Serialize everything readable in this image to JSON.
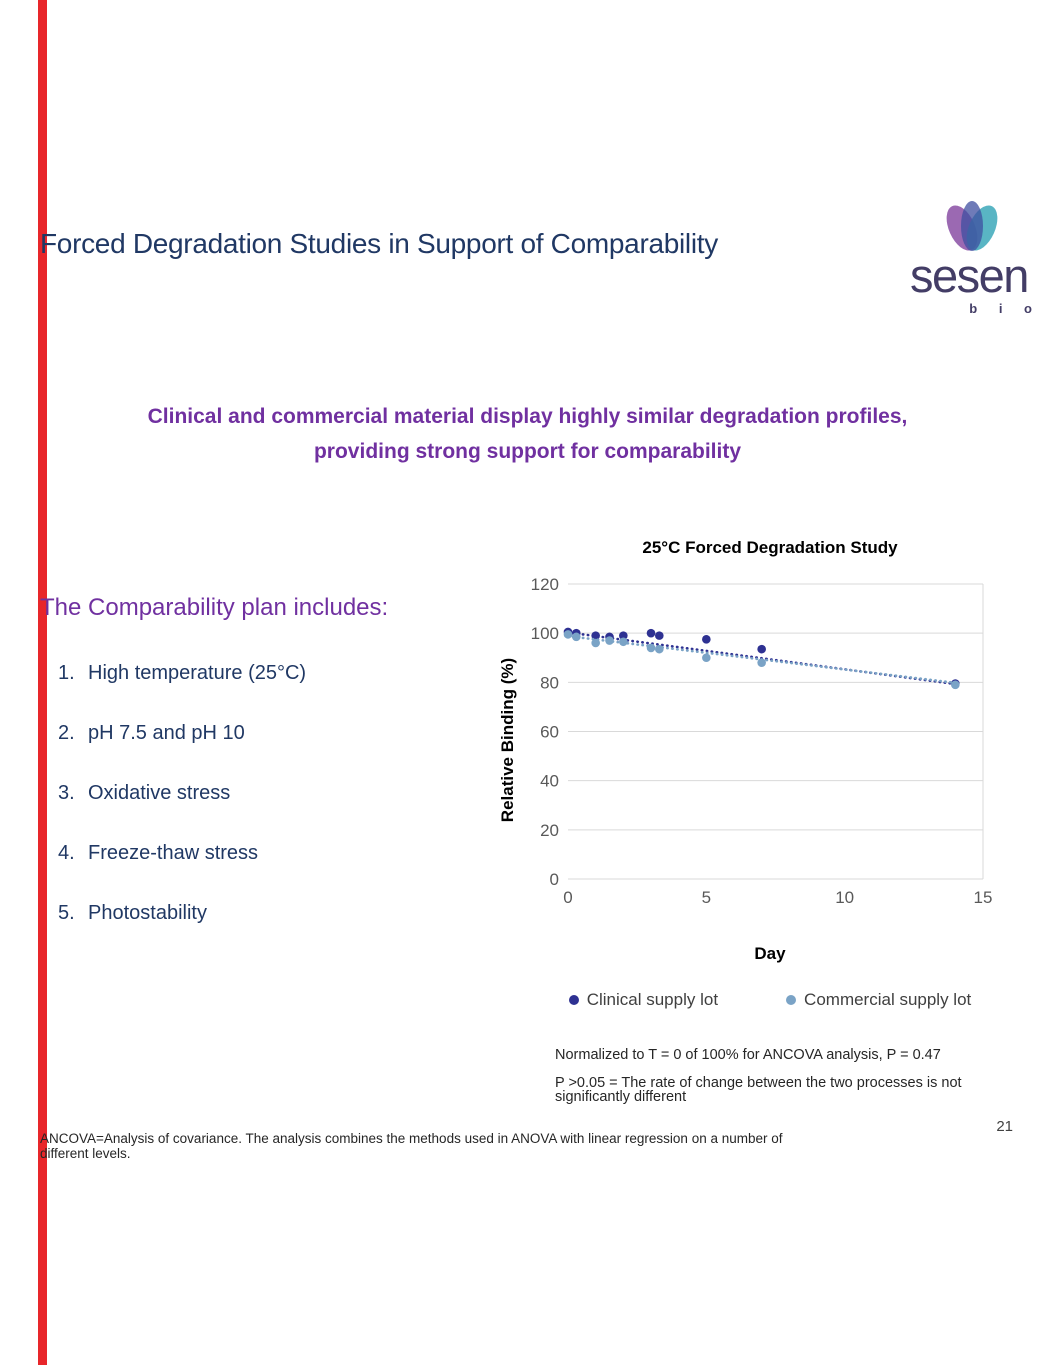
{
  "slide": {
    "title": "Forced Degradation Studies in Support of Comparability",
    "subtitle": "Clinical and commercial material display highly similar degradation profiles,\nproviding strong support for comparability",
    "page_number": "21",
    "footnote": "ANCOVA=Analysis of covariance. The analysis combines the methods used in ANOVA with linear regression on a number of different levels.",
    "accent_color": "#e8262a"
  },
  "logo": {
    "wordmark": "sesen",
    "sub": "b i o",
    "petal_colors": [
      "#8a4fa5",
      "#2fa3b5",
      "#3f4fa0"
    ]
  },
  "plan": {
    "heading": "The Comparability plan includes:",
    "items": [
      {
        "num": "1.",
        "label": "High temperature (25°C)"
      },
      {
        "num": "2.",
        "label": "pH 7.5 and pH 10"
      },
      {
        "num": "3.",
        "label": "Oxidative stress"
      },
      {
        "num": "4.",
        "label": "Freeze-thaw stress"
      },
      {
        "num": "5.",
        "label": "Photostability"
      }
    ]
  },
  "notes": {
    "line1": "Normalized to T = 0 of 100% for ANCOVA analysis, P = 0.47",
    "line2": "P >0.05 = The rate of change between the two processes is not significantly different"
  },
  "chart_data": {
    "type": "scatter",
    "title": "25°C Forced Degradation Study",
    "xlabel": "Day",
    "ylabel": "Relative Binding (%)",
    "xlim": [
      0,
      15
    ],
    "ylim": [
      0,
      120
    ],
    "x_ticks": [
      0,
      5,
      10,
      15
    ],
    "y_ticks": [
      0,
      20,
      40,
      60,
      80,
      100,
      120
    ],
    "grid": "horizontal",
    "legend_position": "bottom",
    "series": [
      {
        "name": "Clinical supply lot",
        "color": "#2e3192",
        "x": [
          0,
          0.3,
          1,
          1.5,
          2,
          3,
          3.3,
          5,
          7,
          14
        ],
        "y": [
          100.5,
          100,
          99,
          98.5,
          99,
          100,
          99,
          97.5,
          93.5,
          79.5
        ],
        "trend": {
          "x": [
            0,
            14
          ],
          "y": [
            100.3,
            79.3
          ]
        }
      },
      {
        "name": "Commercial supply lot",
        "color": "#7aa3c6",
        "x": [
          0,
          0.3,
          1,
          1.5,
          2,
          3,
          3.3,
          5,
          7,
          14
        ],
        "y": [
          99.5,
          98.5,
          96,
          97,
          96.5,
          94,
          93.5,
          90,
          88,
          79
        ],
        "trend": {
          "x": [
            0,
            14
          ],
          "y": [
            98.8,
            79.8
          ]
        }
      }
    ]
  }
}
